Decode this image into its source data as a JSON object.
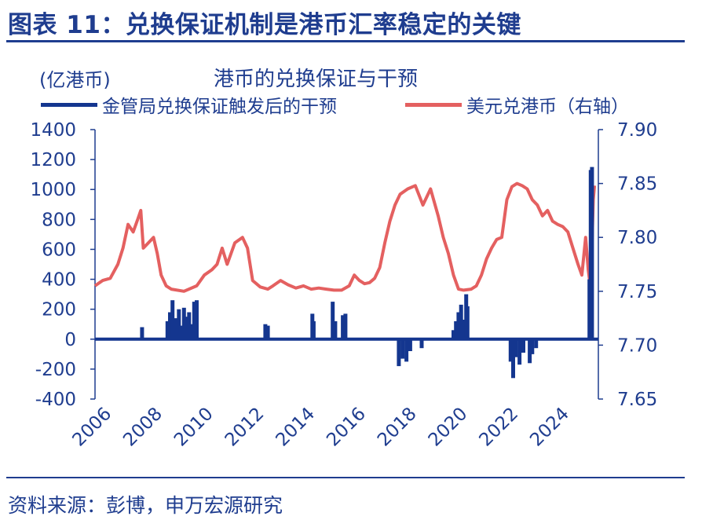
{
  "header": {
    "title": "图表 11：兑换保证机制是港币汇率稳定的关键"
  },
  "footer": {
    "source": "资料来源：彭博，申万宏源研究"
  },
  "chart_data": {
    "type": "bar+line",
    "title": "港币的兑换保证与干预",
    "unit_left": "(亿港币)",
    "colors": {
      "text": "#1f3d8f",
      "bar": "#14368f",
      "line": "#e46060"
    },
    "x_axis": {
      "range": [
        2006.0,
        2025.8
      ],
      "tick_labels": [
        "2006",
        "2008",
        "2010",
        "2012",
        "2014",
        "2016",
        "2018",
        "2020",
        "2022",
        "2024"
      ]
    },
    "y_left": {
      "range": [
        -400,
        1400
      ],
      "tick_labels": [
        "1400",
        "1200",
        "1000",
        "800",
        "600",
        "400",
        "200",
        "0",
        "-200",
        "-400"
      ]
    },
    "y_right": {
      "range": [
        7.65,
        7.9
      ],
      "tick_labels": [
        "7.90",
        "7.85",
        "7.80",
        "7.75",
        "7.70",
        "7.65"
      ]
    },
    "series": [
      {
        "name": "金管局兑换保证触发后的干预",
        "axis": "left",
        "kind": "bar",
        "points": [
          [
            2007.85,
            80
          ],
          [
            2008.85,
            120
          ],
          [
            2008.95,
            180
          ],
          [
            2009.05,
            260
          ],
          [
            2009.15,
            140
          ],
          [
            2009.3,
            200
          ],
          [
            2009.4,
            90
          ],
          [
            2009.5,
            210
          ],
          [
            2009.6,
            150
          ],
          [
            2009.7,
            180
          ],
          [
            2009.8,
            100
          ],
          [
            2009.9,
            250
          ],
          [
            2010.0,
            260
          ],
          [
            2012.7,
            100
          ],
          [
            2012.8,
            90
          ],
          [
            2014.55,
            170
          ],
          [
            2014.6,
            120
          ],
          [
            2015.35,
            250
          ],
          [
            2015.45,
            120
          ],
          [
            2015.75,
            160
          ],
          [
            2015.85,
            170
          ],
          [
            2017.95,
            -180
          ],
          [
            2018.1,
            -130
          ],
          [
            2018.25,
            -150
          ],
          [
            2018.4,
            -80
          ],
          [
            2018.85,
            -60
          ],
          [
            2020.1,
            60
          ],
          [
            2020.2,
            120
          ],
          [
            2020.3,
            180
          ],
          [
            2020.4,
            230
          ],
          [
            2020.5,
            130
          ],
          [
            2020.6,
            300
          ],
          [
            2020.65,
            220
          ],
          [
            2022.35,
            -150
          ],
          [
            2022.45,
            -260
          ],
          [
            2022.55,
            -120
          ],
          [
            2022.7,
            -170
          ],
          [
            2022.85,
            -90
          ],
          [
            2023.1,
            -160
          ],
          [
            2023.2,
            -100
          ],
          [
            2023.35,
            -60
          ],
          [
            2025.45,
            400
          ],
          [
            2025.5,
            1130
          ],
          [
            2025.55,
            1150
          ]
        ]
      },
      {
        "name": "美元兑港币（右轴）",
        "axis": "right",
        "kind": "line",
        "points": [
          [
            2006.0,
            7.755
          ],
          [
            2006.3,
            7.76
          ],
          [
            2006.6,
            7.762
          ],
          [
            2006.9,
            7.775
          ],
          [
            2007.1,
            7.79
          ],
          [
            2007.3,
            7.812
          ],
          [
            2007.5,
            7.805
          ],
          [
            2007.7,
            7.818
          ],
          [
            2007.8,
            7.825
          ],
          [
            2007.9,
            7.79
          ],
          [
            2008.1,
            7.795
          ],
          [
            2008.3,
            7.8
          ],
          [
            2008.45,
            7.785
          ],
          [
            2008.6,
            7.765
          ],
          [
            2008.8,
            7.755
          ],
          [
            2009.0,
            7.752
          ],
          [
            2009.5,
            7.75
          ],
          [
            2010.0,
            7.755
          ],
          [
            2010.3,
            7.765
          ],
          [
            2010.6,
            7.77
          ],
          [
            2010.8,
            7.775
          ],
          [
            2011.0,
            7.79
          ],
          [
            2011.2,
            7.775
          ],
          [
            2011.5,
            7.795
          ],
          [
            2011.8,
            7.8
          ],
          [
            2012.0,
            7.79
          ],
          [
            2012.2,
            7.76
          ],
          [
            2012.5,
            7.754
          ],
          [
            2012.8,
            7.752
          ],
          [
            2013.0,
            7.755
          ],
          [
            2013.3,
            7.76
          ],
          [
            2013.6,
            7.756
          ],
          [
            2013.9,
            7.753
          ],
          [
            2014.2,
            7.755
          ],
          [
            2014.5,
            7.752
          ],
          [
            2014.8,
            7.753
          ],
          [
            2015.1,
            7.752
          ],
          [
            2015.4,
            7.751
          ],
          [
            2015.7,
            7.751
          ],
          [
            2016.0,
            7.755
          ],
          [
            2016.2,
            7.765
          ],
          [
            2016.4,
            7.76
          ],
          [
            2016.6,
            7.757
          ],
          [
            2016.8,
            7.758
          ],
          [
            2017.0,
            7.762
          ],
          [
            2017.2,
            7.772
          ],
          [
            2017.4,
            7.795
          ],
          [
            2017.6,
            7.815
          ],
          [
            2017.8,
            7.83
          ],
          [
            2018.0,
            7.84
          ],
          [
            2018.3,
            7.845
          ],
          [
            2018.6,
            7.848
          ],
          [
            2018.9,
            7.83
          ],
          [
            2019.2,
            7.845
          ],
          [
            2019.5,
            7.82
          ],
          [
            2019.7,
            7.8
          ],
          [
            2019.9,
            7.785
          ],
          [
            2020.1,
            7.765
          ],
          [
            2020.3,
            7.752
          ],
          [
            2020.5,
            7.751
          ],
          [
            2020.8,
            7.752
          ],
          [
            2021.0,
            7.755
          ],
          [
            2021.2,
            7.765
          ],
          [
            2021.4,
            7.78
          ],
          [
            2021.6,
            7.79
          ],
          [
            2021.8,
            7.798
          ],
          [
            2022.0,
            7.8
          ],
          [
            2022.2,
            7.835
          ],
          [
            2022.4,
            7.847
          ],
          [
            2022.6,
            7.85
          ],
          [
            2022.8,
            7.848
          ],
          [
            2023.0,
            7.845
          ],
          [
            2023.2,
            7.835
          ],
          [
            2023.4,
            7.83
          ],
          [
            2023.6,
            7.82
          ],
          [
            2023.8,
            7.825
          ],
          [
            2024.0,
            7.815
          ],
          [
            2024.2,
            7.812
          ],
          [
            2024.4,
            7.81
          ],
          [
            2024.6,
            7.805
          ],
          [
            2024.8,
            7.79
          ],
          [
            2025.0,
            7.775
          ],
          [
            2025.15,
            7.765
          ],
          [
            2025.3,
            7.8
          ],
          [
            2025.4,
            7.77
          ],
          [
            2025.5,
            7.752
          ],
          [
            2025.6,
            7.835
          ],
          [
            2025.65,
            7.848
          ]
        ]
      }
    ]
  }
}
